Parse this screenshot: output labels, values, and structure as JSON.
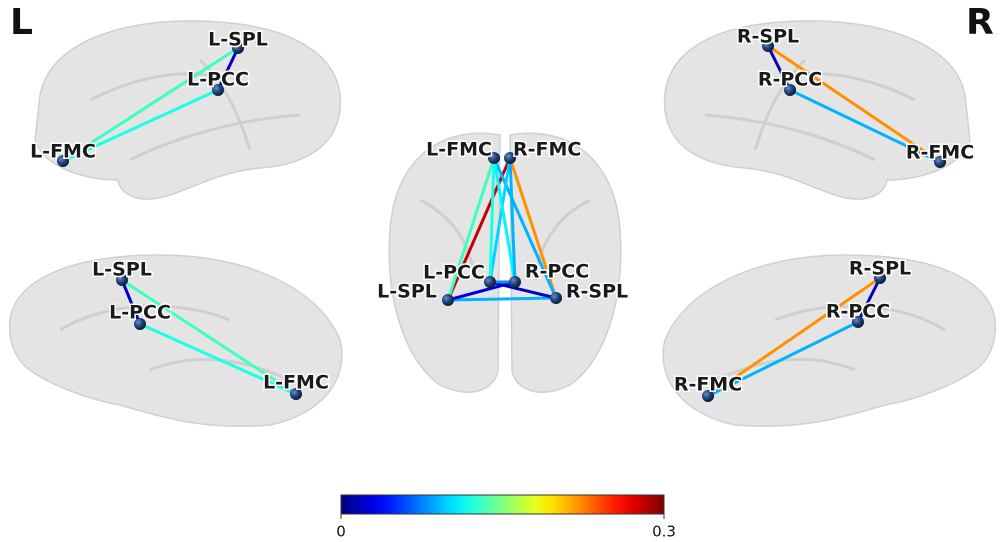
{
  "corner_labels": {
    "left": "L",
    "right": "R"
  },
  "views": [
    {
      "nodes": [
        {
          "label": "L-SPL"
        },
        {
          "label": "L-PCC"
        },
        {
          "label": "L-FMC"
        }
      ],
      "edges": [
        {
          "from": 0,
          "to": 1,
          "value": 0.02
        },
        {
          "from": 0,
          "to": 2,
          "value": 0.13
        },
        {
          "from": 1,
          "to": 2,
          "value": 0.12
        }
      ]
    },
    {
      "nodes": [
        {
          "label": "L-SPL"
        },
        {
          "label": "L-PCC"
        },
        {
          "label": "L-FMC"
        }
      ],
      "edges": [
        {
          "from": 0,
          "to": 1,
          "value": 0.02
        },
        {
          "from": 0,
          "to": 2,
          "value": 0.13
        },
        {
          "from": 1,
          "to": 2,
          "value": 0.12
        }
      ]
    },
    {
      "nodes": [
        {
          "label": "L-FMC"
        },
        {
          "label": "R-FMC"
        },
        {
          "label": "L-PCC"
        },
        {
          "label": "R-PCC"
        },
        {
          "label": "L-SPL"
        },
        {
          "label": "R-SPL"
        }
      ],
      "edges": [
        {
          "from": 4,
          "to": 1,
          "value": 0.28
        },
        {
          "from": 0,
          "to": 4,
          "value": 0.13
        },
        {
          "from": 1,
          "to": 5,
          "value": 0.22
        },
        {
          "from": 0,
          "to": 5,
          "value": 0.09
        },
        {
          "from": 1,
          "to": 2,
          "value": 0.1
        },
        {
          "from": 0,
          "to": 3,
          "value": 0.11
        },
        {
          "from": 0,
          "to": 2,
          "value": 0.12
        },
        {
          "from": 1,
          "to": 3,
          "value": 0.09
        },
        {
          "from": 4,
          "to": 5,
          "value": 0.09
        },
        {
          "from": 4,
          "to": 3,
          "value": 0.03
        },
        {
          "from": 2,
          "to": 5,
          "value": 0.02
        },
        {
          "from": 2,
          "to": 3,
          "value": 0.08
        }
      ]
    },
    {
      "nodes": [
        {
          "label": "R-SPL"
        },
        {
          "label": "R-PCC"
        },
        {
          "label": "R-FMC"
        }
      ],
      "edges": [
        {
          "from": 0,
          "to": 1,
          "value": 0.02
        },
        {
          "from": 0,
          "to": 2,
          "value": 0.22
        },
        {
          "from": 1,
          "to": 2,
          "value": 0.09
        }
      ]
    },
    {
      "nodes": [
        {
          "label": "R-SPL"
        },
        {
          "label": "R-PCC"
        },
        {
          "label": "R-FMC"
        }
      ],
      "edges": [
        {
          "from": 0,
          "to": 1,
          "value": 0.02
        },
        {
          "from": 0,
          "to": 2,
          "value": 0.22
        },
        {
          "from": 1,
          "to": 2,
          "value": 0.09
        }
      ]
    }
  ],
  "colorbar": {
    "lim": [
      0,
      0.3
    ],
    "ticks": [
      0,
      0.3
    ]
  }
}
